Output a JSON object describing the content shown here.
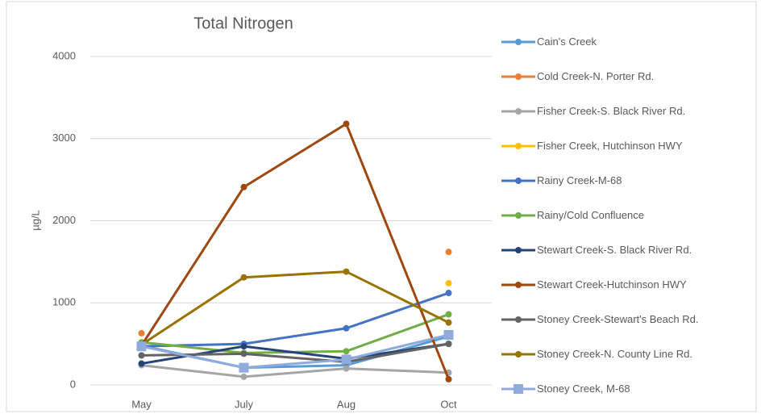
{
  "chart_data": {
    "type": "line",
    "title": "Total Nitrogen",
    "y_label": "µg/L",
    "categories": [
      "May",
      "July",
      "Aug",
      "Oct"
    ],
    "ylim": [
      0,
      4000
    ],
    "yticks": [
      0,
      1000,
      2000,
      3000,
      4000
    ],
    "grid": true,
    "series": [
      {
        "name": "Cain's Creek",
        "color": "#5b9bd5",
        "marker": "circle",
        "values": [
          480,
          210,
          240,
          590
        ]
      },
      {
        "name": "Cold Creek-N. Porter Rd.",
        "color": "#ed7d31",
        "marker": "circle",
        "values": [
          630,
          null,
          null,
          1620
        ]
      },
      {
        "name": "Fisher Creek-S. Black River Rd.",
        "color": "#a5a5a5",
        "marker": "circle",
        "values": [
          240,
          100,
          200,
          150
        ]
      },
      {
        "name": "Fisher Creek, Hutchinson HWY",
        "color": "#ffc000",
        "marker": "circle",
        "values": [
          null,
          null,
          null,
          1240
        ]
      },
      {
        "name": "Rainy Creek-M-68",
        "color": "#4472c4",
        "marker": "circle",
        "values": [
          470,
          500,
          690,
          1120
        ]
      },
      {
        "name": "Rainy/Cold Confluence",
        "color": "#70ad47",
        "marker": "circle",
        "values": [
          520,
          390,
          410,
          860
        ]
      },
      {
        "name": "Stewart Creek-S. Black River Rd.",
        "color": "#264478",
        "marker": "circle",
        "values": [
          260,
          470,
          320,
          500
        ]
      },
      {
        "name": "Stewart Creek-Hutchinson HWY",
        "color": "#9e480e",
        "marker": "circle",
        "values": [
          480,
          2410,
          3180,
          70
        ]
      },
      {
        "name": "Stoney Creek-Stewart's Beach Rd.",
        "color": "#636363",
        "marker": "circle",
        "values": [
          360,
          380,
          280,
          500
        ]
      },
      {
        "name": "Stoney Creek-N. County Line Rd.",
        "color": "#997300",
        "marker": "circle",
        "values": [
          490,
          1310,
          1380,
          760
        ]
      },
      {
        "name": "Stoney Creek, M-68",
        "color": "#8faadc",
        "marker": "square",
        "values": [
          470,
          210,
          310,
          610
        ]
      }
    ]
  }
}
